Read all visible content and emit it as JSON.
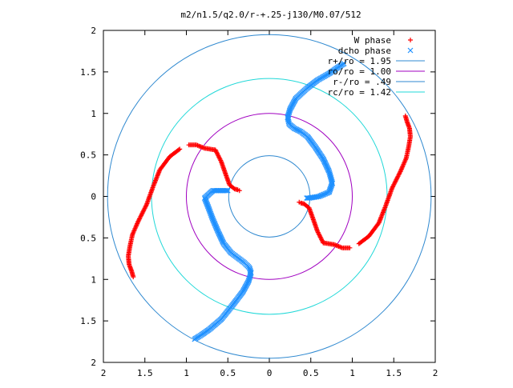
{
  "chart_data": {
    "type": "scatter",
    "title": "m2/n1.5/q2.0/r-+.25-j130/M0.07/512",
    "xlabel": "",
    "ylabel": "",
    "xlim": [
      -2,
      2
    ],
    "ylim": [
      -2,
      2
    ],
    "xticks": [
      "2",
      "1.5",
      "1",
      "0.5",
      "0",
      "0.5",
      "1",
      "1.5",
      "2"
    ],
    "yticks": [
      "2",
      "1.5",
      "1",
      "0.5",
      "0",
      "0.5",
      "1",
      "1.5",
      "2"
    ],
    "grid": false,
    "legend_position": "top-right",
    "legend": [
      {
        "label": "W phase",
        "symbol": "+",
        "color": "#ff0000"
      },
      {
        "label": "dcho phase",
        "symbol": "x",
        "color": "#1e90ff"
      },
      {
        "label": "r+/ro = 1.95",
        "symbol": "line",
        "color": "#2f89d0"
      },
      {
        "label": "ro/ro = 1.00",
        "symbol": "line",
        "color": "#a000c0"
      },
      {
        "label": "r-/ro = .49",
        "symbol": "line",
        "color": "#2f89d0"
      },
      {
        "label": "rc/ro = 1.42",
        "symbol": "line",
        "color": "#20d8d8"
      }
    ],
    "circles": [
      {
        "name": "r+/ro = 1.95",
        "r": 1.95,
        "color": "#2f89d0"
      },
      {
        "name": "ro/ro = 1.00",
        "r": 1.0,
        "color": "#a000c0"
      },
      {
        "name": "r-/ro = .49",
        "r": 0.49,
        "color": "#2f89d0"
      },
      {
        "name": "rc/ro = 1.42",
        "r": 1.42,
        "color": "#20d8d8"
      }
    ],
    "series": [
      {
        "name": "W phase",
        "color": "#ff0000",
        "marker": "plus",
        "points": [
          [
            -0.97,
            0.62
          ],
          [
            -0.88,
            0.62
          ],
          [
            -0.78,
            0.58
          ],
          [
            -0.65,
            0.56
          ],
          [
            -0.58,
            0.42
          ],
          [
            -0.52,
            0.25
          ],
          [
            -0.48,
            0.14
          ],
          [
            -0.42,
            0.09
          ],
          [
            -0.38,
            0.08
          ],
          [
            -0.36,
            0.07
          ],
          [
            -1.08,
            0.57
          ],
          [
            -1.2,
            0.48
          ],
          [
            -1.32,
            0.32
          ],
          [
            -1.4,
            0.12
          ],
          [
            -1.48,
            -0.1
          ],
          [
            -1.58,
            -0.3
          ],
          [
            -1.65,
            -0.46
          ],
          [
            -1.68,
            -0.6
          ],
          [
            -1.7,
            -0.72
          ],
          [
            -1.69,
            -0.82
          ],
          [
            -1.66,
            -0.9
          ],
          [
            -1.64,
            -0.97
          ],
          [
            0.97,
            -0.62
          ],
          [
            0.88,
            -0.62
          ],
          [
            0.78,
            -0.58
          ],
          [
            0.65,
            -0.56
          ],
          [
            0.58,
            -0.42
          ],
          [
            0.52,
            -0.25
          ],
          [
            0.48,
            -0.14
          ],
          [
            0.42,
            -0.09
          ],
          [
            0.38,
            -0.08
          ],
          [
            0.36,
            -0.07
          ],
          [
            1.08,
            -0.57
          ],
          [
            1.2,
            -0.48
          ],
          [
            1.32,
            -0.32
          ],
          [
            1.4,
            -0.12
          ],
          [
            1.48,
            0.1
          ],
          [
            1.58,
            0.3
          ],
          [
            1.65,
            0.46
          ],
          [
            1.68,
            0.6
          ],
          [
            1.7,
            0.72
          ],
          [
            1.69,
            0.82
          ],
          [
            1.66,
            0.9
          ],
          [
            1.64,
            0.97
          ]
        ]
      },
      {
        "name": "dcho phase",
        "color": "#1e90ff",
        "marker": "cross",
        "points": [
          [
            0.9,
            1.6
          ],
          [
            0.82,
            1.55
          ],
          [
            0.72,
            1.48
          ],
          [
            0.58,
            1.4
          ],
          [
            0.45,
            1.3
          ],
          [
            0.32,
            1.18
          ],
          [
            0.25,
            1.05
          ],
          [
            0.22,
            0.95
          ],
          [
            0.24,
            0.87
          ],
          [
            0.3,
            0.82
          ],
          [
            0.38,
            0.78
          ],
          [
            0.46,
            0.72
          ],
          [
            0.55,
            0.6
          ],
          [
            0.65,
            0.45
          ],
          [
            0.72,
            0.3
          ],
          [
            0.76,
            0.16
          ],
          [
            0.72,
            0.05
          ],
          [
            0.6,
            0.0
          ],
          [
            0.48,
            -0.02
          ],
          [
            0.45,
            -0.02
          ],
          [
            -0.9,
            -1.72
          ],
          [
            -0.82,
            -1.67
          ],
          [
            -0.72,
            -1.6
          ],
          [
            -0.58,
            -1.48
          ],
          [
            -0.45,
            -1.32
          ],
          [
            -0.32,
            -1.15
          ],
          [
            -0.25,
            -1.02
          ],
          [
            -0.22,
            -0.92
          ],
          [
            -0.24,
            -0.86
          ],
          [
            -0.3,
            -0.8
          ],
          [
            -0.38,
            -0.74
          ],
          [
            -0.46,
            -0.68
          ],
          [
            -0.55,
            -0.57
          ],
          [
            -0.62,
            -0.42
          ],
          [
            -0.68,
            -0.28
          ],
          [
            -0.74,
            -0.12
          ],
          [
            -0.78,
            -0.02
          ],
          [
            -0.68,
            0.07
          ],
          [
            -0.56,
            0.07
          ],
          [
            -0.5,
            0.07
          ]
        ]
      }
    ]
  }
}
